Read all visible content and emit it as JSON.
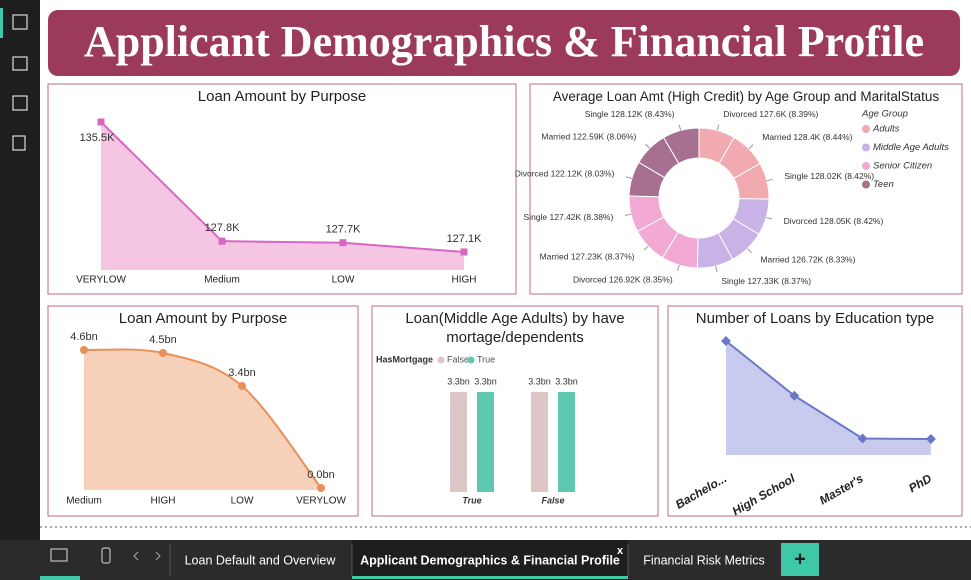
{
  "app": {
    "tabs": [
      "Loan Default and Overview",
      "Applicant Demographics & Financial Profile",
      "Financial Risk Metrics"
    ],
    "active_tab": 1,
    "close": "x",
    "add": "+"
  },
  "header": {
    "title": "Applicant Demographics & Financial Profile"
  },
  "chart_data": [
    {
      "type": "area",
      "title": "Loan Amount by Purpose",
      "categories": [
        "VERYLOW",
        "Medium",
        "LOW",
        "HIGH"
      ],
      "values": [
        135500,
        127800,
        127700,
        127100
      ],
      "value_labels": [
        "135.5K",
        "127.8K",
        "127.7K",
        "127.1K"
      ],
      "color": "#d966c0",
      "fill": "#f4c6e4",
      "marker": "square",
      "smooth": false
    },
    {
      "type": "donut",
      "title": "Average Loan Amt (High Credit) by Age Group and MaritalStatus",
      "legend_title": "Age Group",
      "series": [
        {
          "name": "Adults",
          "color": "#f0aab0",
          "categories": [
            "Divorced",
            "Married",
            "Single"
          ],
          "values": [
            127600,
            128400,
            128020
          ],
          "value_labels": [
            "Divorced 127.6K (8.39%)",
            "Married 128.4K (8.44%)",
            "Single 128.02K (8.42%)"
          ]
        },
        {
          "name": "Middle Age Adults",
          "color": "#c9b3e6",
          "categories": [
            "Divorced",
            "Married",
            "Single"
          ],
          "values": [
            128050,
            126720,
            127330
          ],
          "value_labels": [
            "Divorced 128.05K (8.42%)",
            "Married 126.72K (8.33%)",
            "Single 127.33K (8.37%)"
          ]
        },
        {
          "name": "Senior Citizen",
          "color": "#f2a9d4",
          "categories": [
            "Divorced",
            "Married",
            "Single"
          ],
          "values": [
            126920,
            127230,
            127420
          ],
          "value_labels": [
            "Divorced 126.92K (8.35%)",
            "Married 127.23K (8.37%)",
            "Single 127.42K (8.38%)"
          ]
        },
        {
          "name": "Teen",
          "color": "#a87090",
          "categories": [
            "Divorced",
            "Married",
            "Single"
          ],
          "values": [
            122120,
            122590,
            128120
          ],
          "value_labels": [
            "Divorced 122.12K (8.03%)",
            "Married 122.59K (8.06%)",
            "Single 128.12K (8.43%)"
          ]
        }
      ]
    },
    {
      "type": "area",
      "title": "Loan Amount by Purpose",
      "categories": [
        "Medium",
        "HIGH",
        "LOW",
        "VERYLOW"
      ],
      "values": [
        4.6,
        4.5,
        3.4,
        0.0
      ],
      "value_labels": [
        "4.6bn",
        "4.5bn",
        "3.4bn",
        "0.0bn"
      ],
      "color": "#e8905a",
      "fill": "#f7d0ba",
      "marker": "circle",
      "smooth": true
    },
    {
      "type": "bar",
      "title": "Loan(Middle Age Adults) by have mortage/dependents",
      "legend_title": "HasMortgage",
      "categories": [
        "True",
        "False"
      ],
      "series": [
        {
          "name": "False",
          "color": "#dcc6c6",
          "values": [
            3.3,
            3.3
          ],
          "value_labels": [
            "3.3bn",
            "3.3bn"
          ]
        },
        {
          "name": "True",
          "color": "#5ec8b0",
          "values": [
            3.3,
            3.3
          ],
          "value_labels": [
            "3.3bn",
            "3.3bn"
          ]
        }
      ]
    },
    {
      "type": "area",
      "title": "Number of Loans by Education type",
      "categories": [
        "Bachelo...",
        "High School",
        "Master's",
        "PhD"
      ],
      "values": [
        64366,
        63903,
        63541,
        63537
      ],
      "color": "#6b78c8",
      "fill": "#c8cbee",
      "marker": "diamond",
      "smooth": false
    }
  ]
}
